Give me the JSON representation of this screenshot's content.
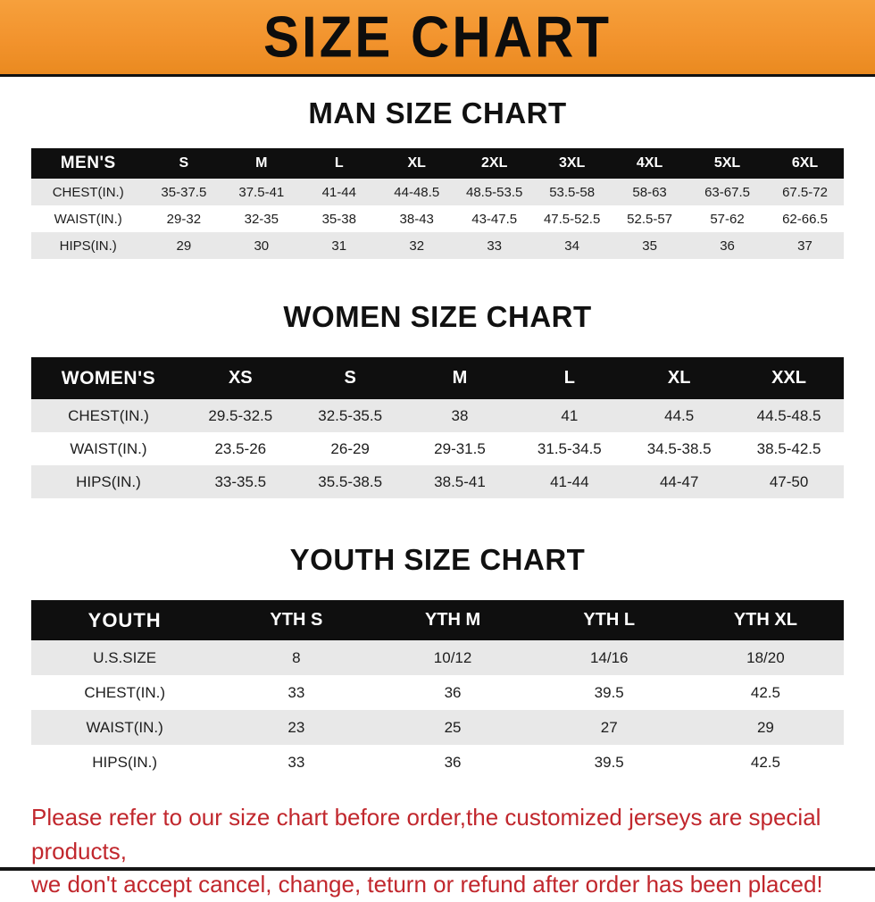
{
  "banner": {
    "title": "SIZE CHART"
  },
  "chart_data": [
    {
      "type": "table",
      "title": "MAN SIZE CHART",
      "columns": [
        "MEN'S",
        "S",
        "M",
        "L",
        "XL",
        "2XL",
        "3XL",
        "4XL",
        "5XL",
        "6XL"
      ],
      "rows": [
        [
          "CHEST(IN.)",
          "35-37.5",
          "37.5-41",
          "41-44",
          "44-48.5",
          "48.5-53.5",
          "53.5-58",
          "58-63",
          "63-67.5",
          "67.5-72"
        ],
        [
          "WAIST(IN.)",
          "29-32",
          "32-35",
          "35-38",
          "38-43",
          "43-47.5",
          "47.5-52.5",
          "52.5-57",
          "57-62",
          "62-66.5"
        ],
        [
          "HIPS(IN.)",
          "29",
          "30",
          "31",
          "32",
          "33",
          "34",
          "35",
          "36",
          "37"
        ]
      ]
    },
    {
      "type": "table",
      "title": "WOMEN SIZE CHART",
      "columns": [
        "WOMEN'S",
        "XS",
        "S",
        "M",
        "L",
        "XL",
        "XXL"
      ],
      "rows": [
        [
          "CHEST(IN.)",
          "29.5-32.5",
          "32.5-35.5",
          "38",
          "41",
          "44.5",
          "44.5-48.5"
        ],
        [
          "WAIST(IN.)",
          "23.5-26",
          "26-29",
          "29-31.5",
          "31.5-34.5",
          "34.5-38.5",
          "38.5-42.5"
        ],
        [
          "HIPS(IN.)",
          "33-35.5",
          "35.5-38.5",
          "38.5-41",
          "41-44",
          "44-47",
          "47-50"
        ]
      ]
    },
    {
      "type": "table",
      "title": "YOUTH SIZE CHART",
      "columns": [
        "YOUTH",
        "YTH S",
        "YTH M",
        "YTH L",
        "YTH XL"
      ],
      "rows": [
        [
          "U.S.SIZE",
          "8",
          "10/12",
          "14/16",
          "18/20"
        ],
        [
          "CHEST(IN.)",
          "33",
          "36",
          "39.5",
          "42.5"
        ],
        [
          "WAIST(IN.)",
          "23",
          "25",
          "27",
          "29"
        ],
        [
          "HIPS(IN.)",
          "33",
          "36",
          "39.5",
          "42.5"
        ]
      ]
    }
  ],
  "disclaimer": {
    "line1": "Please refer to our size chart before order,the customized jerseys are special products,",
    "line2": "we don't accept cancel, change, teturn or refund after order has been placed!"
  },
  "colors": {
    "banner_bg": "#f2932d",
    "header_bg": "#0f0f0f",
    "stripe": "#e8e8e8",
    "disclaimer_text": "#c1272d"
  }
}
